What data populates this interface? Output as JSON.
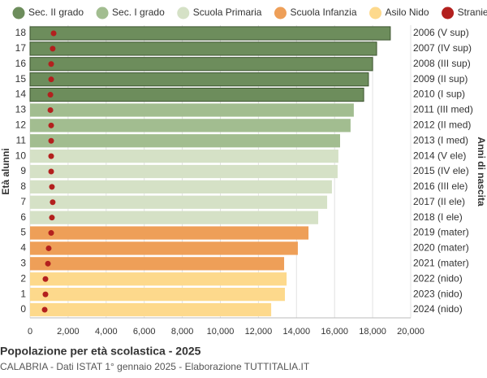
{
  "chart_data": {
    "type": "bar",
    "orientation": "horizontal",
    "title": "Popolazione per età scolastica - 2025",
    "subtitle": "CALABRIA - Dati ISTAT 1° gennaio 2025 - Elaborazione TUTTITALIA.IT",
    "y_label": "Età alunni",
    "y2_label": "Anni di nascita",
    "categories": [
      0,
      1,
      2,
      3,
      4,
      5,
      6,
      7,
      8,
      9,
      10,
      11,
      12,
      13,
      14,
      15,
      16,
      17,
      18
    ],
    "y2_categories": [
      "2024 (nido)",
      "2023 (nido)",
      "2022 (nido)",
      "2021 (mater)",
      "2020 (mater)",
      "2019 (mater)",
      "2018 (I ele)",
      "2017 (II ele)",
      "2016 (III ele)",
      "2015 (IV ele)",
      "2014 (V ele)",
      "2013 (I med)",
      "2012 (II med)",
      "2011 (III med)",
      "2010 (I sup)",
      "2009 (II sup)",
      "2008 (III sup)",
      "2007 (IV sup)",
      "2006 (V sup)"
    ],
    "series": [
      {
        "name": "Sec. II grado",
        "color": "#6d8d5c",
        "values": [
          null,
          null,
          null,
          null,
          null,
          null,
          null,
          null,
          null,
          null,
          null,
          null,
          null,
          null,
          17530,
          17780,
          18000,
          18210,
          18930
        ]
      },
      {
        "name": "Sec. I grado",
        "color": "#a2bd90",
        "values": [
          null,
          null,
          null,
          null,
          null,
          null,
          null,
          null,
          null,
          null,
          null,
          16290,
          16840,
          17010,
          null,
          null,
          null,
          null,
          null
        ]
      },
      {
        "name": "Scuola Primaria",
        "color": "#d5e1c6",
        "values": [
          null,
          null,
          null,
          null,
          null,
          null,
          15140,
          15610,
          15860,
          16160,
          16200,
          null,
          null,
          null,
          null,
          null,
          null,
          null,
          null
        ]
      },
      {
        "name": "Scuola Infanzia",
        "color": "#ee9f58",
        "values": [
          null,
          null,
          null,
          13350,
          14070,
          14630,
          null,
          null,
          null,
          null,
          null,
          null,
          null,
          null,
          null,
          null,
          null,
          null,
          null
        ]
      },
      {
        "name": "Asilo Nido",
        "color": "#fdd98c",
        "values": [
          12670,
          13390,
          13480,
          null,
          null,
          null,
          null,
          null,
          null,
          null,
          null,
          null,
          null,
          null,
          null,
          null,
          null,
          null,
          null
        ]
      },
      {
        "name": "Stranieri",
        "color": "#b3201e",
        "marker": "dot",
        "values": [
          770,
          810,
          810,
          940,
          980,
          1110,
          1150,
          1190,
          1150,
          1110,
          1110,
          1110,
          1110,
          1070,
          1070,
          1110,
          1110,
          1190,
          1240
        ]
      }
    ],
    "xlim": [
      0,
      20000
    ],
    "xticks": [
      0,
      {
        "value": 2000,
        "label": "2,000"
      },
      {
        "value": 4000,
        "label": "4,000"
      },
      {
        "value": 6000,
        "label": "6,000"
      },
      {
        "value": 8000,
        "label": "8,000"
      },
      {
        "value": 10000,
        "label": "10,000"
      },
      {
        "value": 12000,
        "label": "12,000"
      },
      {
        "value": 14000,
        "label": "14,000"
      },
      {
        "value": 16000,
        "label": "16,000"
      },
      {
        "value": 18000,
        "label": "18,000"
      },
      {
        "value": 20000,
        "label": "20,000"
      }
    ],
    "grid": true,
    "legend": "top"
  }
}
